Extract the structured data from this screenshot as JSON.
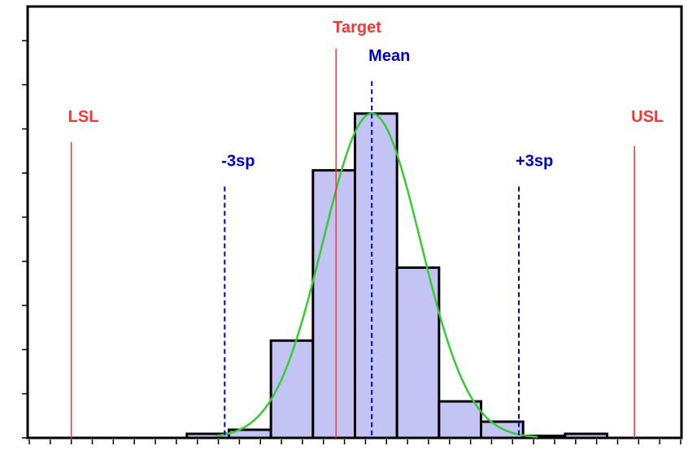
{
  "chart_data": {
    "type": "bar",
    "title": "",
    "xlabel": "",
    "ylabel": "",
    "grid": false,
    "legend": "none",
    "xlim": [
      0,
      31
    ],
    "ylim": [
      0,
      100
    ],
    "histogram": {
      "bins": [
        {
          "x0": 7.5,
          "x1": 9.5,
          "value": 1
        },
        {
          "x0": 9.5,
          "x1": 11.5,
          "value": 2
        },
        {
          "x0": 11.5,
          "x1": 13.5,
          "value": 24
        },
        {
          "x0": 13.5,
          "x1": 15.5,
          "value": 66
        },
        {
          "x0": 15.5,
          "x1": 17.5,
          "value": 80
        },
        {
          "x0": 17.5,
          "x1": 19.5,
          "value": 42
        },
        {
          "x0": 19.5,
          "x1": 21.5,
          "value": 9
        },
        {
          "x0": 21.5,
          "x1": 23.5,
          "value": 4
        },
        {
          "x0": 23.5,
          "x1": 25.5,
          "value": 0.5
        },
        {
          "x0": 25.5,
          "x1": 27.5,
          "value": 1
        }
      ],
      "fill": "#c4c4f4",
      "stroke": "#000000"
    },
    "normal_curve": {
      "mean": 16.3,
      "sigma": 2.32,
      "peak": 80,
      "color": "#33cc33"
    },
    "reference_lines": [
      {
        "label": "LSL",
        "x": 2.0,
        "label_y": 78,
        "line_top": 73,
        "color": "#ff3333",
        "style": "solid"
      },
      {
        "label": "Target",
        "x": 14.6,
        "label_y": 100,
        "line_top": 96,
        "color": "#ff3333",
        "style": "solid"
      },
      {
        "label": "Mean",
        "x": 16.3,
        "label_y": 93,
        "line_top": 88,
        "color": "#0000cc",
        "style": "dashed"
      },
      {
        "label": "-3sp",
        "x": 9.3,
        "label_y": 67,
        "line_top": 62,
        "color": "#0000cc",
        "style": "dashed"
      },
      {
        "label": "+3sp",
        "x": 23.3,
        "label_y": 67,
        "line_top": 62,
        "color": "#0000cc",
        "style": "dashed"
      },
      {
        "label": "USL",
        "x": 28.8,
        "label_y": 78,
        "line_top": 72,
        "color": "#ff3333",
        "style": "solid"
      }
    ]
  }
}
